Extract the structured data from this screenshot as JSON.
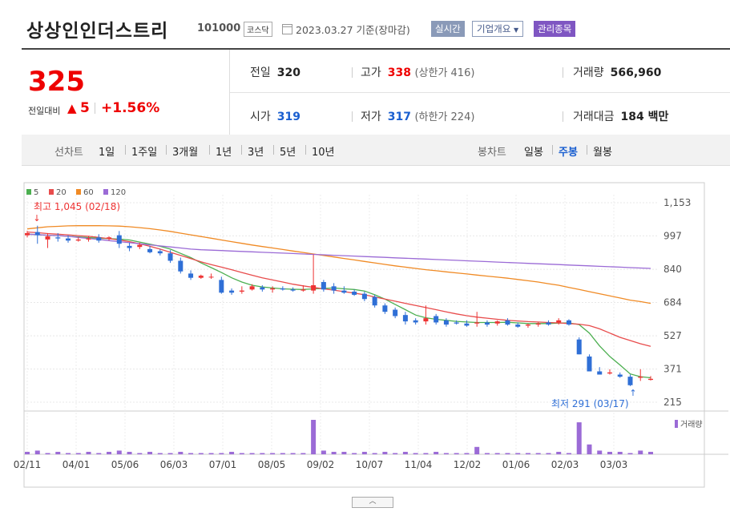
{
  "header": {
    "company": "상상인인더스트리",
    "code": "101000",
    "market": "코스닥",
    "date": "2023.03.27 기준(장마감)",
    "realtime_btn": "실시간",
    "company_info_btn": "기업개요",
    "managed_btn": "관리종목"
  },
  "summary": {
    "price": "325",
    "change_label": "전일대비",
    "change_arrow": "▲",
    "change_value": "5",
    "change_pct": "+1.56%",
    "prev_close": {
      "label": "전일",
      "value": "320"
    },
    "open": {
      "label": "시가",
      "value": "319"
    },
    "high": {
      "label": "고가",
      "value": "338",
      "limit_label": "(상한가 416)"
    },
    "low": {
      "label": "저가",
      "value": "317",
      "limit_label": "(하한가 224)"
    },
    "volume": {
      "label": "거래량",
      "value": "566,960"
    },
    "amount": {
      "label": "거래대금",
      "value": "184 백만"
    }
  },
  "toolbar": {
    "line_label": "선차트",
    "periods": [
      "1일",
      "1주일",
      "3개월",
      "1년",
      "3년",
      "5년",
      "10년"
    ],
    "candle_label": "봉차트",
    "candles": [
      "일봉",
      "주봉",
      "월봉"
    ],
    "active_candle": "주봉"
  },
  "collapse_icon": "chevron-up-icon",
  "chart_data": {
    "type": "candlestick",
    "legend": [
      {
        "name": "5",
        "color": "#4caf50"
      },
      {
        "name": "20",
        "color": "#e84c4c"
      },
      {
        "name": "60",
        "color": "#f08a24"
      },
      {
        "name": "120",
        "color": "#9b6bd6"
      }
    ],
    "y_ticks": [
      "1,153",
      "997",
      "840",
      "684",
      "527",
      "371",
      "215"
    ],
    "ylim": [
      215,
      1153
    ],
    "x_ticks": [
      "02/11",
      "04/01",
      "05/06",
      "06/03",
      "07/01",
      "08/05",
      "09/02",
      "10/07",
      "11/04",
      "12/02",
      "01/06",
      "02/03",
      "03/03"
    ],
    "high_annotation": "최고 1,045 (02/18)",
    "low_annotation": "최저 291 (03/17)",
    "volume_label": "거래량",
    "candles": [
      [
        1000,
        1020,
        1010,
        990
      ],
      [
        1015,
        1045,
        1000,
        960
      ],
      [
        980,
        1010,
        995,
        940
      ],
      [
        990,
        1010,
        985,
        970
      ],
      [
        985,
        1000,
        975,
        965
      ],
      [
        975,
        990,
        980,
        970
      ],
      [
        980,
        995,
        985,
        970
      ],
      [
        990,
        1005,
        975,
        965
      ],
      [
        985,
        995,
        990,
        975
      ],
      [
        1000,
        1020,
        960,
        940
      ],
      [
        950,
        965,
        940,
        925
      ],
      [
        945,
        965,
        955,
        935
      ],
      [
        935,
        950,
        920,
        915
      ],
      [
        925,
        935,
        915,
        905
      ],
      [
        915,
        930,
        880,
        870
      ],
      [
        880,
        895,
        830,
        820
      ],
      [
        820,
        835,
        800,
        790
      ],
      [
        800,
        815,
        810,
        795
      ],
      [
        805,
        820,
        805,
        795
      ],
      [
        790,
        805,
        730,
        725
      ],
      [
        740,
        750,
        730,
        720
      ],
      [
        735,
        760,
        740,
        725
      ],
      [
        745,
        770,
        760,
        740
      ],
      [
        755,
        765,
        745,
        735
      ],
      [
        745,
        760,
        750,
        730
      ],
      [
        750,
        760,
        745,
        740
      ],
      [
        745,
        755,
        740,
        735
      ],
      [
        740,
        765,
        745,
        735
      ],
      [
        740,
        910,
        765,
        725
      ],
      [
        780,
        790,
        745,
        735
      ],
      [
        760,
        775,
        740,
        725
      ],
      [
        740,
        760,
        730,
        725
      ],
      [
        735,
        745,
        720,
        715
      ],
      [
        725,
        735,
        700,
        690
      ],
      [
        710,
        720,
        670,
        660
      ],
      [
        670,
        680,
        640,
        630
      ],
      [
        650,
        660,
        620,
        610
      ],
      [
        625,
        640,
        595,
        580
      ],
      [
        600,
        610,
        590,
        580
      ],
      [
        595,
        670,
        610,
        580
      ],
      [
        620,
        630,
        590,
        580
      ],
      [
        600,
        610,
        580,
        570
      ],
      [
        590,
        600,
        585,
        580
      ],
      [
        585,
        600,
        575,
        570
      ],
      [
        585,
        640,
        590,
        570
      ],
      [
        590,
        600,
        580,
        570
      ],
      [
        585,
        600,
        595,
        575
      ],
      [
        600,
        610,
        580,
        575
      ],
      [
        580,
        590,
        570,
        565
      ],
      [
        575,
        585,
        580,
        565
      ],
      [
        580,
        590,
        585,
        570
      ],
      [
        590,
        600,
        580,
        575
      ],
      [
        590,
        610,
        600,
        580
      ],
      [
        600,
        605,
        580,
        575
      ],
      [
        510,
        520,
        440,
        440
      ],
      [
        430,
        440,
        360,
        360
      ],
      [
        360,
        380,
        345,
        345
      ],
      [
        350,
        370,
        355,
        345
      ],
      [
        345,
        355,
        335,
        330
      ],
      [
        335,
        345,
        295,
        291
      ],
      [
        330,
        370,
        335,
        315
      ],
      [
        320,
        338,
        325,
        317
      ]
    ],
    "ma": {
      "5": [
        1005,
        1003,
        1000,
        998,
        995,
        992,
        989,
        986,
        984,
        982,
        978,
        968,
        958,
        948,
        935,
        915,
        895,
        870,
        848,
        825,
        800,
        780,
        765,
        757,
        752,
        748,
        746,
        745,
        748,
        750,
        752,
        748,
        745,
        738,
        720,
        700,
        675,
        650,
        625,
        612,
        605,
        600,
        595,
        592,
        590,
        590,
        590,
        591,
        588,
        585,
        585,
        585,
        587,
        588,
        580,
        540,
        480,
        430,
        390,
        348,
        335,
        330
      ],
      "20": [
        1015,
        1012,
        1008,
        1005,
        1002,
        998,
        995,
        990,
        984,
        978,
        970,
        960,
        948,
        935,
        920,
        905,
        890,
        875,
        862,
        850,
        838,
        825,
        812,
        800,
        790,
        780,
        770,
        762,
        755,
        748,
        742,
        735,
        728,
        720,
        710,
        700,
        690,
        680,
        670,
        660,
        650,
        640,
        630,
        622,
        615,
        610,
        605,
        600,
        597,
        594,
        592,
        590,
        588,
        585,
        582,
        575,
        560,
        540,
        520,
        505,
        490,
        478
      ],
      "60": [
        1030,
        1035,
        1040,
        1042,
        1044,
        1045,
        1045,
        1045,
        1044,
        1043,
        1040,
        1036,
        1031,
        1025,
        1018,
        1010,
        1002,
        994,
        986,
        978,
        970,
        962,
        954,
        947,
        940,
        933,
        926,
        919,
        912,
        905,
        898,
        891,
        884,
        877,
        870,
        863,
        856,
        850,
        844,
        838,
        833,
        828,
        823,
        818,
        813,
        808,
        803,
        798,
        792,
        786,
        780,
        772,
        765,
        755,
        745,
        735,
        725,
        715,
        705,
        695,
        688,
        680
      ],
      "120": [
        1005,
        1003,
        1000,
        998,
        995,
        990,
        985,
        980,
        975,
        970,
        965,
        960,
        955,
        950,
        945,
        940,
        935,
        932,
        930,
        928,
        926,
        924,
        922,
        920,
        918,
        916,
        914,
        912,
        910,
        908,
        906,
        904,
        902,
        900,
        898,
        896,
        894,
        892,
        890,
        888,
        886,
        884,
        882,
        880,
        878,
        876,
        874,
        872,
        870,
        868,
        866,
        864,
        862,
        860,
        858,
        856,
        854,
        852,
        850,
        848,
        846,
        844
      ]
    },
    "volume": [
      2,
      3,
      1,
      2,
      1,
      1,
      2,
      1,
      2,
      3,
      2,
      1,
      2,
      1,
      1,
      2,
      1,
      1,
      1,
      1,
      2,
      1,
      1,
      1,
      1,
      1,
      1,
      1,
      28,
      3,
      2,
      2,
      1,
      2,
      1,
      2,
      1,
      2,
      1,
      1,
      2,
      1,
      1,
      1,
      6,
      1,
      1,
      1,
      1,
      1,
      1,
      1,
      2,
      1,
      26,
      8,
      3,
      2,
      2,
      1,
      3,
      2
    ]
  }
}
